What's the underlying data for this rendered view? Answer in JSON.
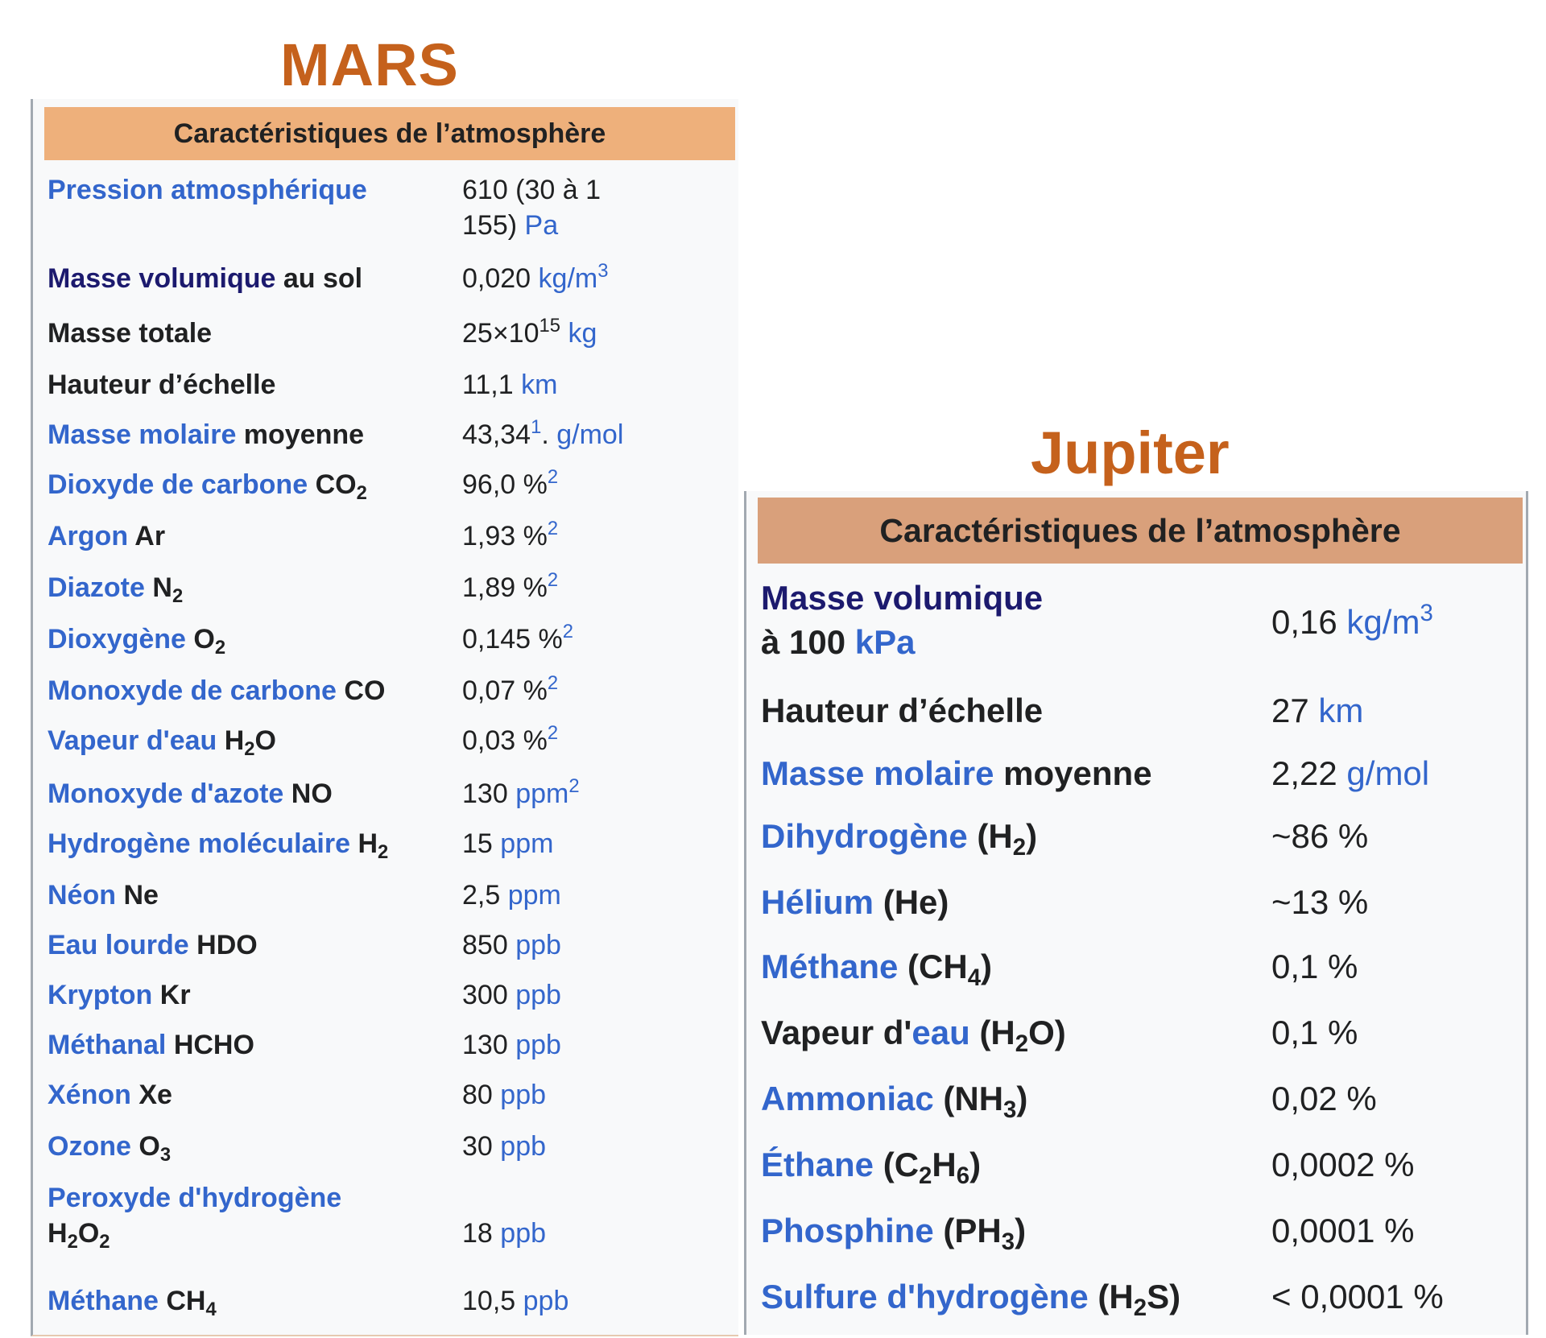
{
  "mars": {
    "title": "MARS",
    "header": "Caractéristiques de l’atmosphère",
    "rows": [
      {
        "label": "Pression atmosphérique",
        "label_suffix": "",
        "value": "610 (30 à 1 155)",
        "unit": "Pa"
      },
      {
        "label": "Masse volumique",
        "label_suffix": " au sol",
        "value": "0,020",
        "unit": "kg/m",
        "unit_sup": "3"
      },
      {
        "label": "Masse totale",
        "value": "25×10",
        "value_sup": "15",
        "unit": "kg"
      },
      {
        "label": "Hauteur d’échelle",
        "value": "11,1",
        "unit": "km"
      },
      {
        "label": "Masse molaire",
        "label_suffix": " moyenne",
        "value": "43,34",
        "value_sup": "1",
        "value_after": ".",
        "unit": "g/mol"
      },
      {
        "label": "Dioxyde de carbone",
        "formula": "CO",
        "formula_sub": "2",
        "value": "96,0 %",
        "value_sup": "2"
      },
      {
        "label": "Argon",
        "formula": "Ar",
        "value": "1,93 %",
        "value_sup": "2"
      },
      {
        "label": "Diazote",
        "formula": "N",
        "formula_sub": "2",
        "value": "1,89 %",
        "value_sup": "2"
      },
      {
        "label": "Dioxygène",
        "formula": "O",
        "formula_sub": "2",
        "value": "0,145 %",
        "value_sup": "2"
      },
      {
        "label": "Monoxyde de carbone",
        "formula": "CO",
        "value": "0,07 %",
        "value_sup": "2"
      },
      {
        "label": "Vapeur d'eau",
        "formula": "H",
        "formula_sub": "2",
        "formula_after": "O",
        "value": "0,03 %",
        "value_sup": "2"
      },
      {
        "label": "Monoxyde d'azote",
        "formula": "NO",
        "value": "130",
        "unit": "ppm",
        "unit_sup": "2"
      },
      {
        "label": "Hydrogène moléculaire",
        "formula": "H",
        "formula_sub": "2",
        "value": "15",
        "unit": "ppm"
      },
      {
        "label": "Néon",
        "formula": "Ne",
        "value": "2,5",
        "unit": "ppm"
      },
      {
        "label": "Eau lourde",
        "formula": "HDO",
        "value": "850",
        "unit": "ppb"
      },
      {
        "label": "Krypton",
        "formula": "Kr",
        "value": "300",
        "unit": "ppb"
      },
      {
        "label": "Méthanal",
        "formula": "HCHO",
        "value": "130",
        "unit": "ppb"
      },
      {
        "label": "Xénon",
        "formula": "Xe",
        "value": "80",
        "unit": "ppb"
      },
      {
        "label": "Ozone",
        "formula": "O",
        "formula_sub": "3",
        "value": "30",
        "unit": "ppb"
      },
      {
        "label": "Peroxyde d'hydrogène",
        "formula": "H",
        "formula_sub": "2",
        "formula_after": "O",
        "formula_sub2": "2",
        "value": "18",
        "unit": "ppb"
      },
      {
        "label": "Méthane",
        "formula": "CH",
        "formula_sub": "4",
        "value": "10,5",
        "unit": "ppb"
      }
    ]
  },
  "jupiter": {
    "title": "Jupiter",
    "header": "Caractéristiques de l’atmosphère",
    "rows": [
      {
        "label": "Masse volumique",
        "label_line2": "à 100",
        "label_line2_link": "kPa",
        "value": "0,16",
        "unit": "kg/m",
        "unit_sup": "3"
      },
      {
        "label": "Hauteur d’échelle",
        "value": "27",
        "unit": "km"
      },
      {
        "label": "Masse molaire",
        "label_suffix": " moyenne",
        "value": "2,22",
        "unit": "g/mol"
      },
      {
        "label": "Dihydrogène",
        "formula": "(H",
        "formula_sub": "2",
        "formula_after": ")",
        "value": "~86 %"
      },
      {
        "label": "Hélium",
        "formula": "(He)",
        "value": "~13 %"
      },
      {
        "label": "Méthane",
        "formula": "(CH",
        "formula_sub": "4",
        "formula_after": ")",
        "value": "0,1 %"
      },
      {
        "label_prefix": "Vapeur d'",
        "label": "eau",
        "formula": "(H",
        "formula_sub": "2",
        "formula_after": "O)",
        "value": "0,1 %"
      },
      {
        "label": "Ammoniac",
        "formula": "(NH",
        "formula_sub": "3",
        "formula_after": ")",
        "value": "0,02 %"
      },
      {
        "label": "Éthane",
        "formula": "(C",
        "formula_sub": "2",
        "formula_after": "H",
        "formula_sub2": "6",
        "formula_after2": ")",
        "value": "0,0002 %"
      },
      {
        "label": "Phosphine",
        "formula": "(PH",
        "formula_sub": "3",
        "formula_after": ")",
        "value": "0,0001 %"
      },
      {
        "label": "Sulfure d'hydrogène",
        "formula": "(H",
        "formula_sub": "2",
        "formula_after": "S)",
        "value": "< 0,0001 %"
      }
    ]
  }
}
